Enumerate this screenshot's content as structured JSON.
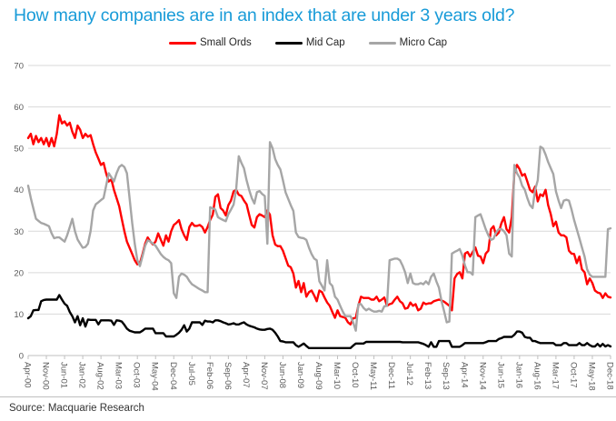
{
  "title": "How many companies are in an index that are under 3 years old?",
  "source": "Source: Macquarie Research",
  "colors": {
    "title": "#189bd8",
    "grid": "#d9d9d9",
    "axis_line": "#bfbfbf",
    "axis_text": "#595959",
    "small_ords": "#ff0000",
    "mid_cap": "#000000",
    "micro_cap": "#a6a6a6"
  },
  "chart_data": {
    "type": "line",
    "title": "How many companies are in an index that are under 3 years old?",
    "xlabel": "",
    "ylabel": "",
    "grid": "horizontal",
    "legend_position": "top",
    "y_axis": {
      "min": 0,
      "max": 70,
      "tick_step": 10,
      "ticks": [
        0,
        10,
        20,
        30,
        40,
        50,
        60,
        70
      ]
    },
    "x_axis": {
      "frequency": "monthly",
      "start": "Apr-00",
      "end": "Dec-18",
      "months_total": 225,
      "tick_every_n_months": 7,
      "tick_labels": [
        "Apr-00",
        "Nov-00",
        "Jun-01",
        "Jan-02",
        "Aug-02",
        "Mar-03",
        "Oct-03",
        "May-04",
        "Dec-04",
        "Jul-05",
        "Feb-06",
        "Sep-06",
        "Apr-07",
        "Nov-07",
        "Jun-08",
        "Jan-09",
        "Aug-09",
        "Mar-10",
        "Oct-10",
        "May-11",
        "Dec-11",
        "Jul-12",
        "Feb-13",
        "Sep-13",
        "Apr-14",
        "Nov-14",
        "Jun-15",
        "Jan-16",
        "Aug-16",
        "Mar-17",
        "Oct-17",
        "May-18",
        "Dec-18"
      ]
    },
    "series": [
      {
        "name": "Small Ords",
        "color": "#ff0000",
        "values": [
          52.5,
          53.5,
          51,
          53,
          51.5,
          52.5,
          51,
          52.5,
          50.5,
          52.5,
          50.5,
          53.5,
          58,
          56,
          56.5,
          55.5,
          56.2,
          54,
          52.5,
          55.5,
          54.5,
          52.5,
          53.5,
          52.8,
          53.2,
          51,
          49,
          47.5,
          46,
          46.5,
          44,
          42,
          42.5,
          40,
          38,
          36,
          33,
          30,
          27.5,
          26,
          24.5,
          23,
          22,
          22.3,
          24.5,
          27,
          28.5,
          27.5,
          26.8,
          27.5,
          29.5,
          28,
          26.5,
          29,
          27.5,
          30,
          31.5,
          32,
          32.7,
          30.5,
          29,
          27.9,
          31,
          32,
          31.3,
          31.3,
          31.5,
          31,
          29.7,
          31,
          32.7,
          34,
          38.3,
          38.9,
          35.6,
          35,
          33.8,
          36.3,
          37.4,
          39.6,
          40,
          38.8,
          38.5,
          37.4,
          36.5,
          34,
          31.5,
          30.9,
          33.4,
          34.1,
          33.8,
          33.4,
          35,
          34,
          29,
          26.8,
          26.4,
          26.4,
          25.3,
          23.5,
          21.7,
          21.3,
          19.8,
          16.4,
          18,
          15.3,
          17.5,
          14.2,
          15.3,
          15.7,
          14.5,
          13.1,
          15.7,
          15.3,
          14,
          12.8,
          12,
          10.5,
          9.1,
          10.9,
          9.5,
          9.3,
          9.1,
          8,
          7.5,
          9,
          9.1,
          12,
          14.2,
          13.9,
          13.9,
          13.9,
          13.5,
          13.5,
          14.2,
          13.1,
          13.5,
          14,
          12,
          12.4,
          12.6,
          13.5,
          14.2,
          13.1,
          12.6,
          11.3,
          11.5,
          12.8,
          12,
          12.4,
          10.9,
          11.3,
          12.8,
          12.4,
          12.6,
          12.6,
          13.1,
          13.3,
          13.5,
          13.3,
          13,
          12.5,
          12,
          10.9,
          18.6,
          19.7,
          20.1,
          18.6,
          24.6,
          25,
          23.9,
          25,
          26.1,
          24.1,
          23.9,
          22.3,
          24.6,
          25.3,
          30.5,
          31.2,
          29,
          29.7,
          31.9,
          33.4,
          30.5,
          29.7,
          33.4,
          44,
          46,
          45,
          43.4,
          43.8,
          42,
          40,
          39.4,
          40.8,
          37.2,
          38.9,
          38.5,
          40,
          36.3,
          34.1,
          31.2,
          32.3,
          29.7,
          29,
          29,
          28.5,
          25.3,
          24.6,
          24.5,
          22.3,
          23.9,
          20.8,
          20.1,
          17.2,
          18.6,
          17.5,
          15.7,
          15.2,
          15,
          13.9,
          15,
          14.2,
          14
        ]
      },
      {
        "name": "Mid Cap",
        "color": "#000000",
        "values": [
          9,
          9.5,
          10.9,
          11,
          11,
          13.1,
          13.4,
          13.5,
          13.5,
          13.5,
          13.5,
          13.5,
          14.6,
          13.5,
          12.5,
          12,
          10.5,
          9.5,
          8,
          9.5,
          7.3,
          9,
          7,
          8.7,
          8.6,
          8.6,
          8.6,
          7.5,
          8.5,
          8.5,
          8.5,
          8.5,
          8.4,
          7.4,
          8.5,
          8.4,
          8.2,
          7.4,
          6.5,
          6,
          5.8,
          5.6,
          5.6,
          5.6,
          6,
          6.5,
          6.5,
          6.5,
          6.5,
          5.4,
          5.4,
          5.4,
          5.4,
          4.6,
          4.6,
          4.6,
          4.6,
          5,
          5.5,
          6.2,
          7.3,
          5.8,
          6.5,
          8,
          8,
          8,
          8,
          7.4,
          8.4,
          8.2,
          8.2,
          8,
          8.5,
          8.5,
          8.3,
          8,
          7.8,
          7.5,
          7.6,
          7.8,
          7.5,
          7.5,
          7.8,
          8,
          7.5,
          7.2,
          7,
          6.8,
          6.5,
          6.3,
          6.2,
          6.2,
          6.4,
          6.5,
          6.2,
          5.5,
          4.6,
          3.5,
          3.4,
          3.2,
          3.2,
          3.2,
          3.2,
          2.5,
          2.1,
          2.5,
          2.9,
          2.3,
          1.8,
          1.8,
          1.8,
          1.8,
          1.8,
          1.8,
          1.8,
          1.8,
          1.8,
          1.8,
          1.8,
          1.8,
          1.8,
          1.8,
          1.8,
          1.8,
          1.8,
          2.4,
          2.9,
          2.9,
          2.9,
          2.9,
          3.3,
          3.3,
          3.3,
          3.3,
          3.3,
          3.3,
          3.3,
          3.3,
          3.3,
          3.3,
          3.3,
          3.3,
          3.3,
          3.3,
          3.2,
          3.2,
          3.2,
          3.2,
          3.2,
          3.2,
          3.2,
          3,
          2.8,
          2.5,
          2.1,
          3.2,
          2.1,
          2.1,
          3.5,
          3.5,
          3.5,
          3.5,
          3.5,
          2.1,
          2.1,
          2.1,
          2.1,
          2.5,
          3,
          3,
          3,
          3,
          3,
          3,
          3,
          3,
          3.2,
          3.5,
          3.5,
          3.5,
          3.5,
          4,
          4.2,
          4.5,
          4.5,
          4.5,
          4.5,
          5,
          5.8,
          5.8,
          5.5,
          4.5,
          4.3,
          4.3,
          3.5,
          3.5,
          3.2,
          3,
          3,
          3,
          3,
          3,
          3,
          2.5,
          2.5,
          2.5,
          3,
          3,
          2.5,
          2.5,
          2.5,
          2.5,
          3,
          2.5,
          2.5,
          3,
          2.5,
          2.2,
          2.2,
          2.8,
          2.2,
          2.8,
          2.2,
          2.5,
          2.2
        ]
      },
      {
        "name": "Micro Cap",
        "color": "#a6a6a6",
        "values": [
          41,
          38,
          35.5,
          33,
          32.5,
          32,
          31.8,
          31.5,
          31.2,
          29.5,
          28.3,
          28.5,
          28.5,
          28,
          27.5,
          29,
          31,
          33,
          30,
          28,
          27,
          26,
          26.2,
          27,
          30,
          35,
          36.5,
          37,
          37.5,
          38,
          41,
          44,
          43,
          42,
          44,
          45.5,
          46,
          45.5,
          44,
          38,
          32,
          27,
          23,
          21.6,
          24,
          26.5,
          27.8,
          27.5,
          27,
          26.5,
          25.5,
          24.5,
          23.8,
          23.3,
          23,
          22.3,
          15,
          13.9,
          19,
          19.8,
          19.5,
          19,
          18,
          17.2,
          16.8,
          16.4,
          16,
          15.7,
          15.3,
          15.3,
          35.8,
          35.5,
          35.2,
          33.4,
          33,
          32.7,
          32.4,
          34.1,
          35.2,
          36.4,
          40,
          48.1,
          46.5,
          45.2,
          42.3,
          40,
          38,
          36.7,
          39.4,
          39.7,
          39,
          38.5,
          27,
          51.5,
          50,
          47.4,
          46,
          44.9,
          42.3,
          39.4,
          37.8,
          36.3,
          34.9,
          29.7,
          28.6,
          28.4,
          28.3,
          27.9,
          26,
          24.5,
          23.4,
          23,
          17.9,
          16.8,
          15.7,
          23,
          17.5,
          16.8,
          14.2,
          13.5,
          12,
          10.6,
          9.5,
          9.5,
          9.5,
          8,
          6,
          12.4,
          12.4,
          11.5,
          10.9,
          11.3,
          10.9,
          10.6,
          10.6,
          10.8,
          10.6,
          11.9,
          12,
          23,
          23.2,
          23.4,
          23.4,
          23,
          21.7,
          20.1,
          17.5,
          19.8,
          17.5,
          17.2,
          17.2,
          17.5,
          17.2,
          17.9,
          17.2,
          19,
          19.8,
          17.9,
          16.4,
          13.1,
          10.6,
          8,
          8.2,
          24.6,
          25,
          25.3,
          25.7,
          24.1,
          21.7,
          20.1,
          20.1,
          19.5,
          33.4,
          33.8,
          34.1,
          32.3,
          30.5,
          29,
          27.9,
          28.2,
          29.7,
          30.5,
          30.5,
          30,
          29,
          24.6,
          23.9,
          46,
          44,
          43,
          41,
          40,
          38,
          36.3,
          35.6,
          40,
          42.3,
          50.4,
          50,
          48.5,
          46.7,
          45.2,
          43.8,
          39.6,
          37.4,
          35.6,
          37.4,
          37.6,
          37.4,
          35.2,
          32.7,
          30.5,
          28.3,
          26.1,
          23.9,
          20.8,
          19.5,
          19,
          19,
          19,
          19,
          19,
          19,
          30.5,
          30.7
        ]
      }
    ]
  }
}
